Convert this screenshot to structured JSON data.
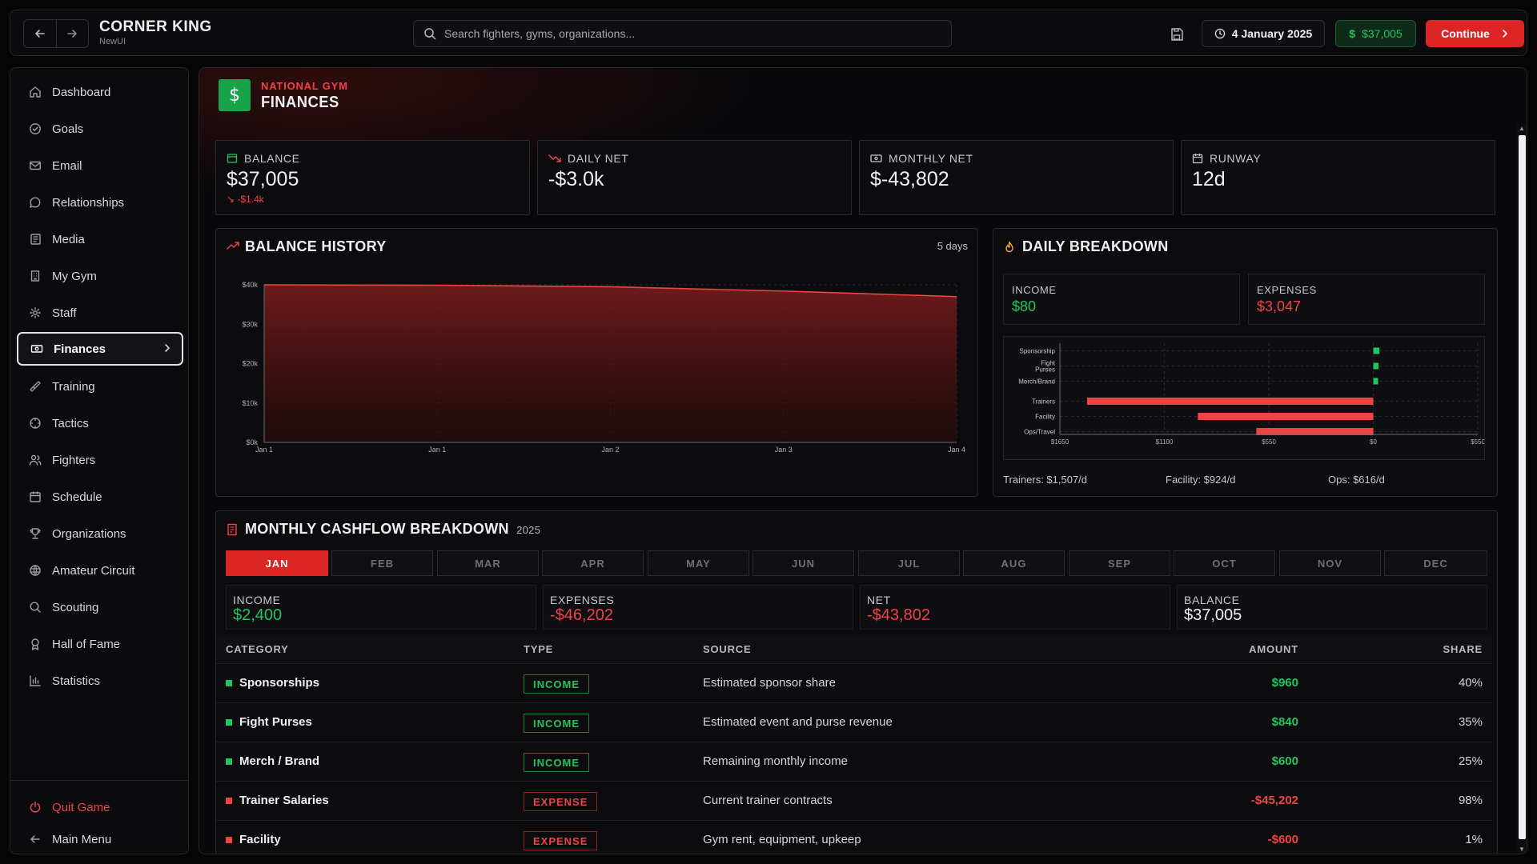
{
  "app": {
    "title": "CORNER KING",
    "subtitle": "NewUI"
  },
  "search": {
    "placeholder": "Search fighters, gyms, organizations..."
  },
  "topbar": {
    "date": "4 January 2025",
    "money": "$37,005",
    "continue_label": "Continue"
  },
  "sidebar": {
    "items": [
      {
        "label": "Dashboard",
        "icon": "home-icon"
      },
      {
        "label": "Goals",
        "icon": "check-circle-icon"
      },
      {
        "label": "Email",
        "icon": "mail-icon"
      },
      {
        "label": "Relationships",
        "icon": "chat-bubble-icon"
      },
      {
        "label": "Media",
        "icon": "newspaper-icon"
      },
      {
        "label": "My Gym",
        "icon": "building-icon"
      },
      {
        "label": "Staff",
        "icon": "gear-icon"
      },
      {
        "label": "Finances",
        "icon": "banknote-icon",
        "active": true
      },
      {
        "label": "Training",
        "icon": "dumbbell-icon"
      },
      {
        "label": "Tactics",
        "icon": "crosshair-icon"
      },
      {
        "label": "Fighters",
        "icon": "users-icon"
      },
      {
        "label": "Schedule",
        "icon": "calendar-icon"
      },
      {
        "label": "Organizations",
        "icon": "trophy-icon"
      },
      {
        "label": "Amateur Circuit",
        "icon": "globe-icon"
      },
      {
        "label": "Scouting",
        "icon": "search-icon"
      },
      {
        "label": "Hall of Fame",
        "icon": "award-icon"
      },
      {
        "label": "Statistics",
        "icon": "bar-chart-icon"
      }
    ],
    "quit_label": "Quit Game",
    "main_menu_label": "Main Menu"
  },
  "header": {
    "kicker": "NATIONAL GYM",
    "title": "FINANCES",
    "icon": "$"
  },
  "stats": {
    "balance": {
      "label": "BALANCE",
      "value": "$37,005",
      "sub": "-$1.4k"
    },
    "daily_net": {
      "label": "DAILY NET",
      "value": "-$3.0k"
    },
    "monthly_net": {
      "label": "MONTHLY NET",
      "value": "$-43,802"
    },
    "runway": {
      "label": "RUNWAY",
      "value": "12d"
    }
  },
  "balance_history": {
    "title": "BALANCE HISTORY",
    "range_label": "5 days"
  },
  "daily_breakdown": {
    "title": "DAILY BREAKDOWN",
    "income_label": "INCOME",
    "income_value": "$80",
    "expenses_label": "EXPENSES",
    "expenses_value": "$3,047",
    "footer": [
      "Trainers: $1,507/d",
      "Facility: $924/d",
      "Ops: $616/d"
    ]
  },
  "monthly": {
    "title": "MONTHLY CASHFLOW BREAKDOWN",
    "year": "2025",
    "months": [
      "JAN",
      "FEB",
      "MAR",
      "APR",
      "MAY",
      "JUN",
      "JUL",
      "AUG",
      "SEP",
      "OCT",
      "NOV",
      "DEC"
    ],
    "active_month": "JAN",
    "summary": [
      {
        "label": "INCOME",
        "value": "$2,400",
        "color": "#22c55e"
      },
      {
        "label": "EXPENSES",
        "value": "-$46,202",
        "color": "#ef4444"
      },
      {
        "label": "NET",
        "value": "-$43,802",
        "color": "#ef4444"
      },
      {
        "label": "BALANCE",
        "value": "$37,005",
        "color": "#f0f0f2"
      }
    ],
    "columns": {
      "category": "CATEGORY",
      "type": "TYPE",
      "source": "SOURCE",
      "amount": "AMOUNT",
      "share": "SHARE"
    },
    "rows": [
      {
        "category": "Sponsorships",
        "type": "INCOME",
        "source": "Estimated sponsor share",
        "amount": "$960",
        "share": "40%"
      },
      {
        "category": "Fight Purses",
        "type": "INCOME",
        "source": "Estimated event and purse revenue",
        "amount": "$840",
        "share": "35%"
      },
      {
        "category": "Merch / Brand",
        "type": "INCOME",
        "source": "Remaining monthly income",
        "amount": "$600",
        "share": "25%"
      },
      {
        "category": "Trainer Salaries",
        "type": "EXPENSE",
        "source": "Current trainer contracts",
        "amount": "-$45,202",
        "share": "98%"
      },
      {
        "category": "Facility",
        "type": "EXPENSE",
        "source": "Gym rent, equipment, upkeep",
        "amount": "-$600",
        "share": "1%"
      }
    ]
  },
  "colors": {
    "accent": "#dc2626",
    "income": "#22c55e",
    "expense": "#ef4444",
    "runway": "#f0a93b"
  },
  "chart_data": [
    {
      "type": "area",
      "x": [
        "Jan 1",
        "Jan 1",
        "Jan 2",
        "Jan 3",
        "Jan 4"
      ],
      "values": [
        40000,
        39900,
        39500,
        38400,
        37005
      ],
      "yticks": [
        "$0k",
        "$10k",
        "$20k",
        "$30k",
        "$40k"
      ],
      "ylim": [
        0,
        40000
      ],
      "grid": true
    },
    {
      "type": "bar",
      "categories": [
        "Sponsorship",
        "Fight Purses",
        "Merch/Brand",
        "Trainers",
        "Facility",
        "Ops/Travel"
      ],
      "values": [
        32,
        28,
        20,
        -1507,
        -924,
        -616
      ],
      "xticks": [
        "$1650",
        "$1100",
        "$550",
        "$0",
        "$550"
      ],
      "xlim": [
        -1650,
        550
      ],
      "grid": true
    }
  ]
}
